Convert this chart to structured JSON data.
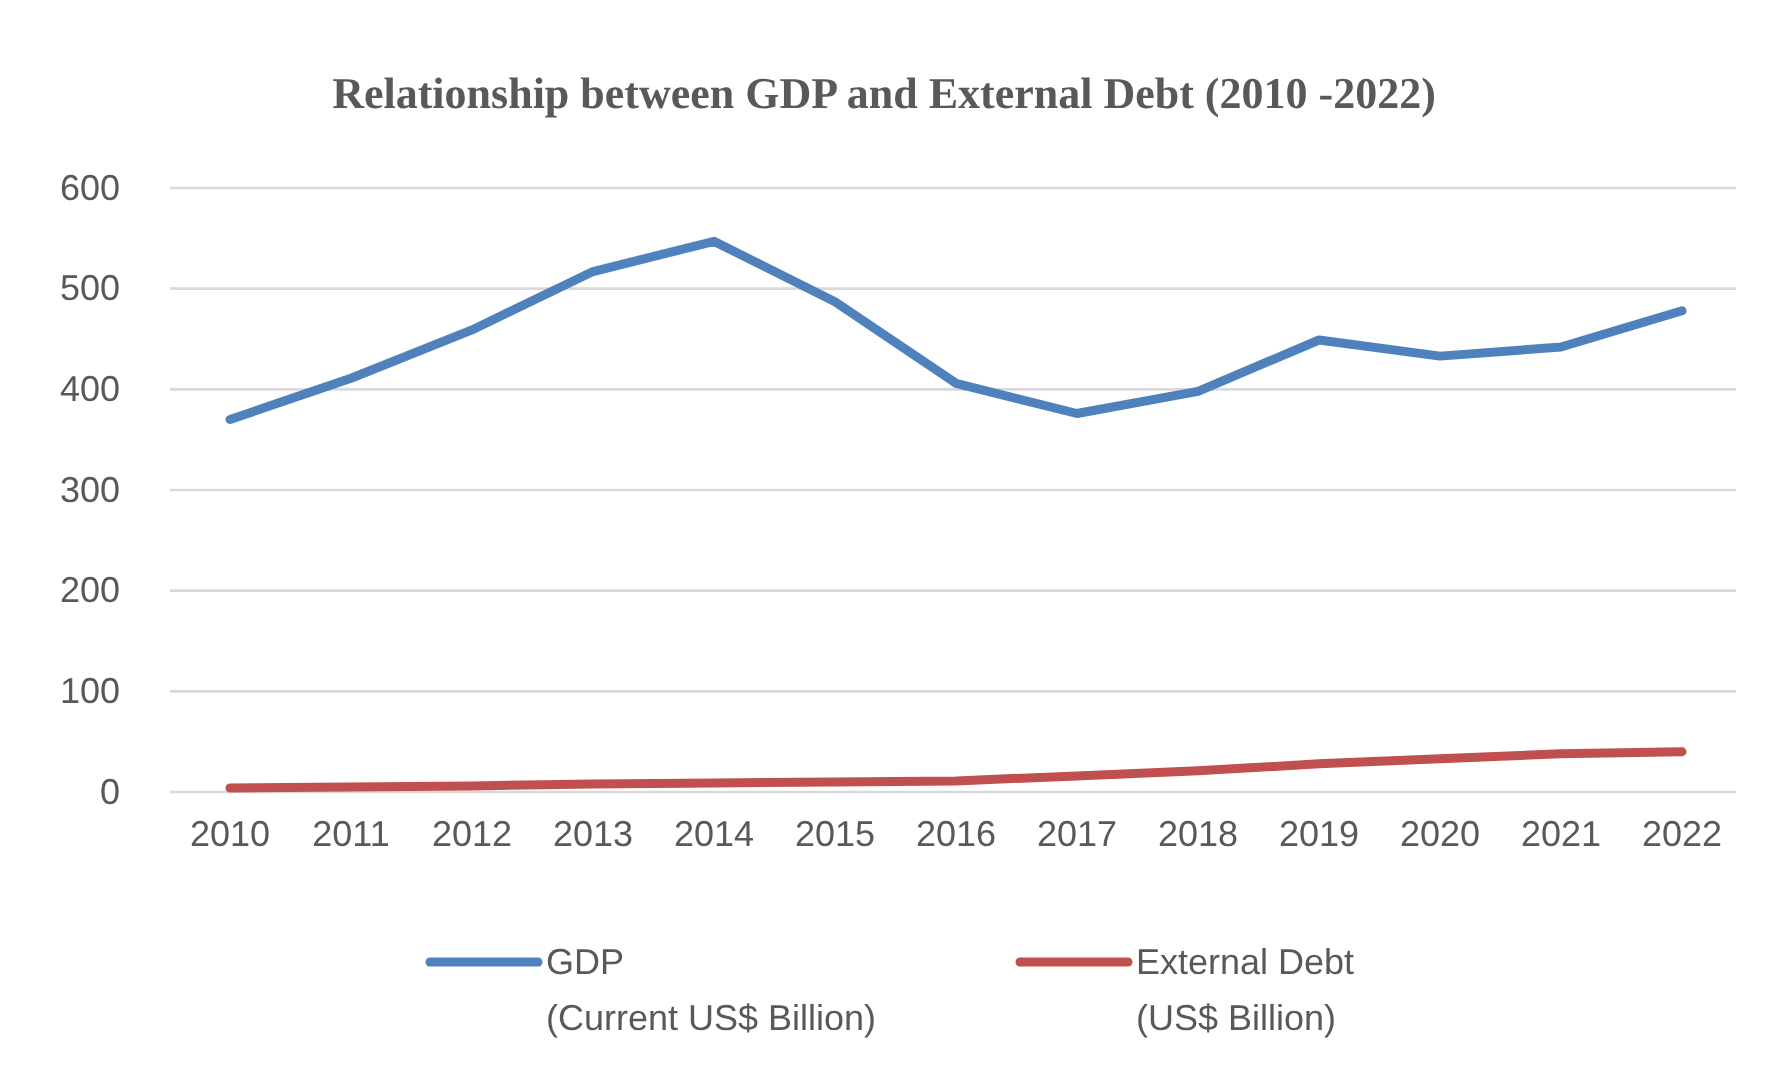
{
  "chart_data": {
    "type": "line",
    "title": "Relationship between GDP and External Debt (2010 -2022)",
    "categories": [
      "2010",
      "2011",
      "2012",
      "2013",
      "2014",
      "2015",
      "2016",
      "2017",
      "2018",
      "2019",
      "2020",
      "2021",
      "2022"
    ],
    "series": [
      {
        "name": "GDP (Current US$ Billion)",
        "color": "#4f81bd",
        "values": [
          370,
          411,
          459,
          517,
          547,
          487,
          406,
          376,
          398,
          449,
          433,
          442,
          478
        ]
      },
      {
        "name": "External Debt (US$ Billion)",
        "color": "#c0504d",
        "values": [
          4,
          5,
          6,
          8,
          9,
          10,
          11,
          16,
          21,
          28,
          33,
          38,
          40
        ]
      }
    ],
    "ylim": [
      0,
      600
    ],
    "yticks": [
      0,
      100,
      200,
      300,
      400,
      500,
      600
    ],
    "grid": "y",
    "legend": "bottom",
    "marker": "none",
    "line_style": "solid"
  }
}
